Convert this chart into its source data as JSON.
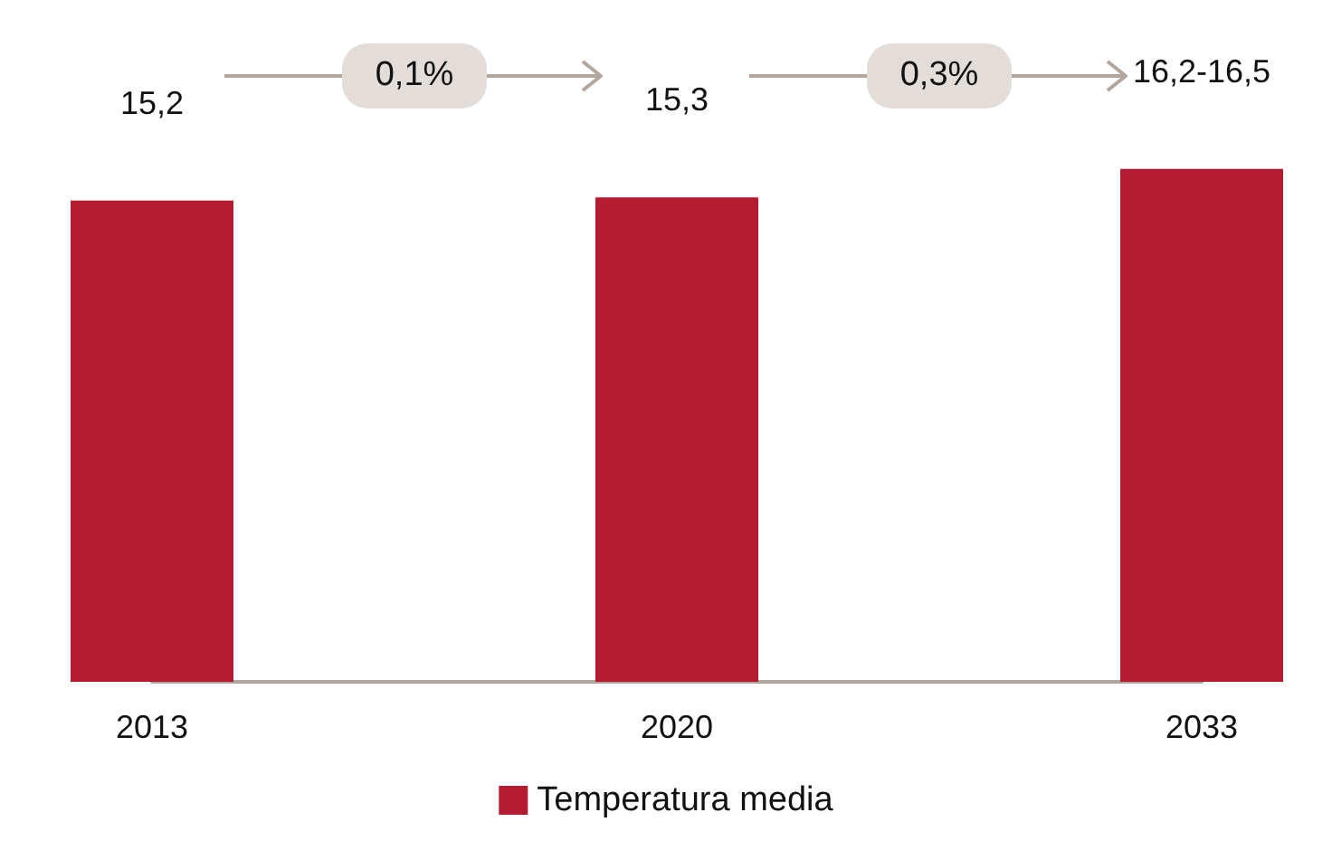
{
  "chart_data": {
    "type": "bar",
    "categories": [
      "2013",
      "2020",
      "2033"
    ],
    "series": [
      {
        "name": "Temperatura media",
        "color": "#b51c32",
        "values": [
          15.2,
          15.3,
          16.2
        ],
        "value_labels": [
          "15,2",
          "15,3",
          "16,2-16,5"
        ]
      }
    ],
    "annotations": [
      "0,1%",
      "0,3%"
    ],
    "legend": "bottom"
  }
}
